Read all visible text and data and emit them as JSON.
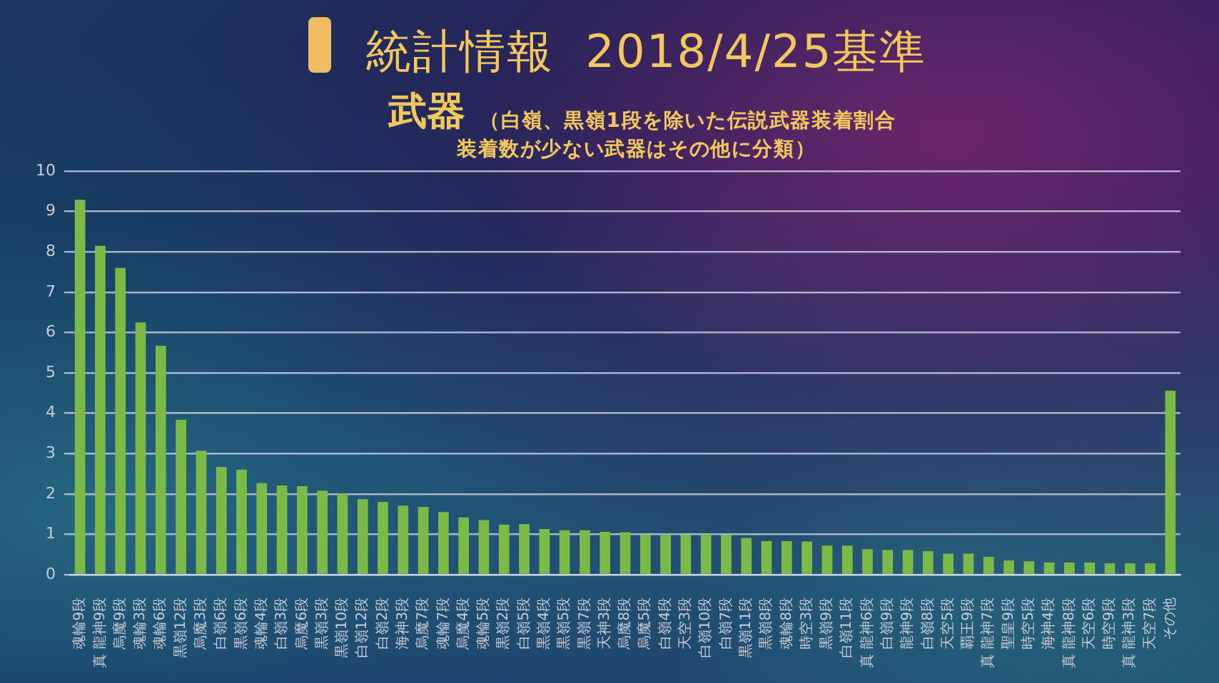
{
  "chart_data": {
    "type": "bar",
    "title": "統計情報  2018/4/25基準",
    "subtitle": "武器",
    "annotations": [
      "（白嶺、黒嶺1段を除いた伝説武器装着割合",
      "装着数が少ない武器はその他に分類）"
    ],
    "categories": [
      "魂輪9段",
      "真 龍神9段",
      "烏魔9段",
      "魂輪3段",
      "魂輪6段",
      "黒嶺12段",
      "烏魔3段",
      "白嶺6段",
      "黒嶺6段",
      "魂輪4段",
      "白嶺3段",
      "烏魔6段",
      "黒嶺3段",
      "黒嶺10段",
      "白嶺12段",
      "白嶺2段",
      "海神3段",
      "烏魔7段",
      "魂輪7段",
      "烏魔4段",
      "魂輪5段",
      "黒嶺2段",
      "白嶺5段",
      "黒嶺4段",
      "黒嶺5段",
      "黒嶺7段",
      "天神3段",
      "烏魔8段",
      "烏魔5段",
      "白嶺4段",
      "天空3段",
      "白嶺10段",
      "白嶺7段",
      "黒嶺11段",
      "黒嶺8段",
      "魂輪8段",
      "時空3段",
      "黒嶺9段",
      "白嶺11段",
      "真 龍神6段",
      "白嶺9段",
      "龍神9段",
      "白嶺8段",
      "天空5段",
      "覇王9段",
      "真 龍神7段",
      "聖皇9段",
      "時空5段",
      "海神4段",
      "真 龍神8段",
      "天空6段",
      "時空9段",
      "真 龍神3段",
      "天空7段",
      "その他"
    ],
    "values": [
      9.29,
      8.15,
      7.6,
      6.25,
      5.67,
      3.84,
      3.07,
      2.67,
      2.6,
      2.27,
      2.21,
      2.19,
      2.08,
      2.0,
      1.87,
      1.8,
      1.71,
      1.68,
      1.55,
      1.42,
      1.35,
      1.24,
      1.25,
      1.13,
      1.1,
      1.1,
      1.06,
      1.05,
      0.99,
      0.99,
      0.99,
      1.0,
      0.99,
      0.91,
      0.83,
      0.83,
      0.82,
      0.72,
      0.72,
      0.63,
      0.61,
      0.61,
      0.58,
      0.52,
      0.52,
      0.44,
      0.35,
      0.33,
      0.3,
      0.3,
      0.3,
      0.28,
      0.28,
      0.28,
      4.56
    ],
    "color": "#7cba47",
    "ylim": [
      0,
      10
    ],
    "yticks": [
      0,
      1,
      2,
      3,
      4,
      5,
      6,
      7,
      8,
      9,
      10
    ],
    "grid": "y"
  }
}
